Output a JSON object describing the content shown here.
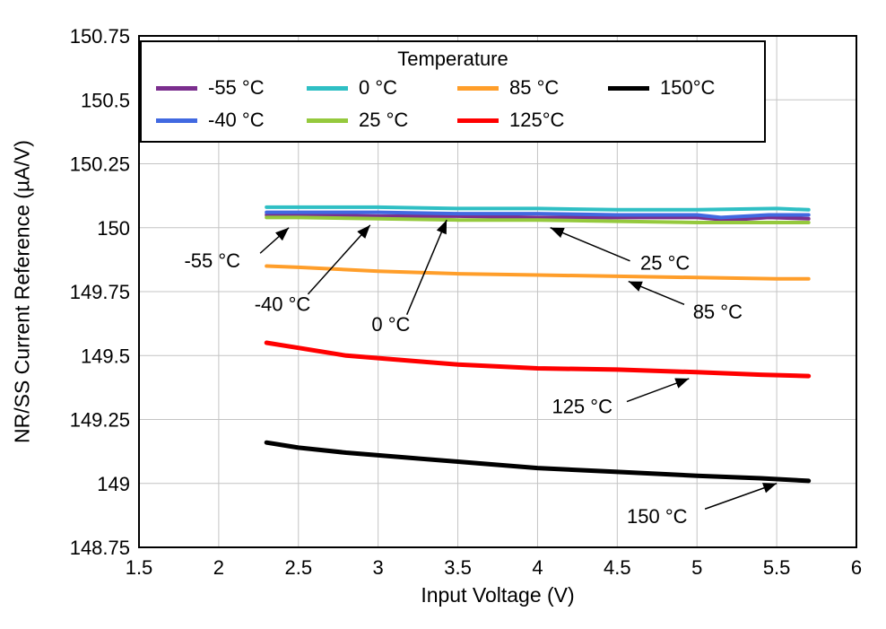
{
  "chart_data": {
    "type": "line",
    "title": "",
    "xlabel": "Input Voltage (V)",
    "ylabel": "NR/SS Current Reference (µA/V)",
    "legend_title": "Temperature",
    "legend_position": "top-left",
    "grid": true,
    "grid_color": "#c4c4c4",
    "xlim": [
      1.5,
      6
    ],
    "ylim": [
      148.75,
      150.75
    ],
    "xticks": [
      1.5,
      2,
      2.5,
      3,
      3.5,
      4,
      4.5,
      5,
      5.5,
      6
    ],
    "yticks": [
      148.75,
      149,
      149.25,
      149.5,
      149.75,
      150,
      150.25,
      150.5,
      150.75
    ],
    "series": [
      {
        "name": "-55 °C",
        "color": "#7B2E8E",
        "width": 4,
        "x": [
          2.3,
          2.5,
          3,
          3.5,
          4,
          4.5,
          5,
          5.2,
          5.45,
          5.7
        ],
        "y": [
          150.05,
          150.05,
          150.045,
          150.045,
          150.04,
          150.04,
          150.04,
          150.03,
          150.04,
          150.035
        ]
      },
      {
        "name": "-40 °C",
        "color": "#4169E1",
        "width": 4,
        "x": [
          2.3,
          2.5,
          3,
          3.5,
          4,
          4.5,
          5,
          5.15,
          5.45,
          5.7
        ],
        "y": [
          150.06,
          150.06,
          150.06,
          150.055,
          150.055,
          150.05,
          150.05,
          150.04,
          150.05,
          150.05
        ]
      },
      {
        "name": "0 °C",
        "color": "#2FBFC4",
        "width": 4,
        "x": [
          2.3,
          2.5,
          3,
          3.5,
          4,
          4.5,
          5,
          5.5,
          5.7
        ],
        "y": [
          150.08,
          150.08,
          150.08,
          150.075,
          150.075,
          150.07,
          150.07,
          150.075,
          150.07
        ]
      },
      {
        "name": "25 °C",
        "color": "#95C93D",
        "width": 4,
        "x": [
          2.3,
          2.5,
          3,
          3.5,
          4,
          4.5,
          5,
          5.5,
          5.7
        ],
        "y": [
          150.04,
          150.04,
          150.035,
          150.03,
          150.03,
          150.025,
          150.02,
          150.02,
          150.02
        ]
      },
      {
        "name": "85 °C",
        "color": "#FF9E2A",
        "width": 4,
        "x": [
          2.3,
          2.5,
          3,
          3.5,
          4,
          4.5,
          5,
          5.5,
          5.7
        ],
        "y": [
          149.85,
          149.845,
          149.83,
          149.82,
          149.815,
          149.81,
          149.805,
          149.8,
          149.8
        ]
      },
      {
        "name": "125°C",
        "color": "#FF0000",
        "width": 5,
        "x": [
          2.3,
          2.5,
          2.8,
          3,
          3.2,
          3.5,
          4,
          4.5,
          5,
          5.4,
          5.7
        ],
        "y": [
          149.55,
          149.53,
          149.5,
          149.49,
          149.48,
          149.465,
          149.45,
          149.445,
          149.435,
          149.425,
          149.42
        ]
      },
      {
        "name": "150°C",
        "color": "#000000",
        "width": 5,
        "x": [
          2.3,
          2.5,
          2.8,
          3,
          3.2,
          3.5,
          4,
          4.5,
          5,
          5.4,
          5.7
        ],
        "y": [
          149.16,
          149.14,
          149.12,
          149.11,
          149.1,
          149.085,
          149.06,
          149.045,
          149.03,
          149.02,
          149.01
        ]
      }
    ],
    "annotations": [
      {
        "text": "-55 °C",
        "tx": 1.96,
        "ty": 149.87,
        "x1": 2.26,
        "y1": 149.9,
        "x2": 2.44,
        "y2": 150.0
      },
      {
        "text": "-40 °C",
        "tx": 2.4,
        "ty": 149.7,
        "x1": 2.56,
        "y1": 149.74,
        "x2": 2.95,
        "y2": 150.01
      },
      {
        "text": "0 °C",
        "tx": 3.08,
        "ty": 149.62,
        "x1": 3.18,
        "y1": 149.66,
        "x2": 3.43,
        "y2": 150.03
      },
      {
        "text": "25 °C",
        "tx": 4.8,
        "ty": 149.86,
        "x1": 4.58,
        "y1": 149.87,
        "x2": 4.08,
        "y2": 150.0
      },
      {
        "text": "85 °C",
        "tx": 5.13,
        "ty": 149.67,
        "x1": 4.92,
        "y1": 149.7,
        "x2": 4.57,
        "y2": 149.79
      },
      {
        "text": "125 °C",
        "tx": 4.28,
        "ty": 149.3,
        "x1": 4.56,
        "y1": 149.32,
        "x2": 4.95,
        "y2": 149.41
      },
      {
        "text": "150 °C",
        "tx": 4.75,
        "ty": 148.87,
        "x1": 5.05,
        "y1": 148.9,
        "x2": 5.5,
        "y2": 149.0
      }
    ]
  }
}
